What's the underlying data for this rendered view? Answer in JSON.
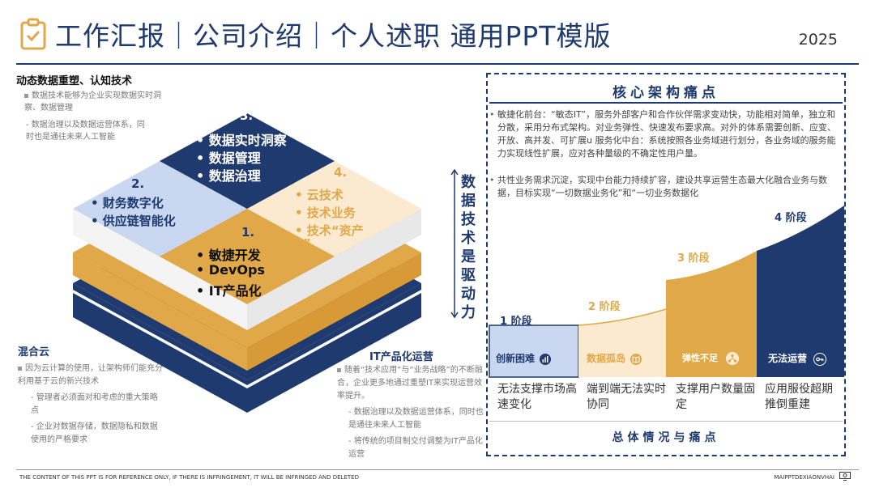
{
  "header": {
    "title": "工作汇报｜公司介绍｜个人述职 通用PPT模版",
    "year": "2025",
    "icon": "clipboard-check-icon"
  },
  "left_top": {
    "title": "动态数据重塑、认知技术",
    "bullet1": "数据技术能够为企业实现数据实时洞察、数据管理",
    "bullet2": "- 数据治理以及数据运营体系，同时也是通往未来人工智能"
  },
  "left_bottom": {
    "title": "混合云",
    "bullet1": "因为云计算的使用，让架构师们能充分利用基于云的新兴技术",
    "bullet2": "- 管理者必须面对和考虑的重大策略点",
    "bullet3": "- 企业对数据存储，数据隐私和数据使用的严格要求"
  },
  "right_bottom": {
    "title": "IT产品化运营",
    "bullet1": "随着“技术应用”与“业务战略”的不断融合，企业更多地通过重塑IT来实现运营效率提升。",
    "bullet2": "- 数据治理以及数据运营体系，同时也是通往未来人工智能",
    "bullet3": "- 将传统的项目制交付调整为IT产品化运营"
  },
  "diamond": {
    "q1": {
      "num": "1.",
      "items": [
        "•  敏捷开发",
        "•  DevOps",
        "•  IT产品化"
      ]
    },
    "q2": {
      "num": "2.",
      "items": [
        "•  财务数字化",
        "•  供应链智能化"
      ]
    },
    "q3": {
      "num": "3.",
      "items": [
        "•  数据实时洞察",
        "•  数据管理",
        "•  数据治理"
      ]
    },
    "q4": {
      "num": "4.",
      "items": [
        "•  云技术",
        "•  技术业务",
        "•  技术“资产",
        "”"
      ]
    }
  },
  "vertical_label": "数据技术是驱动力",
  "panel": {
    "title": "核心架构痛点",
    "bullet1": "敏捷化前台：“敏态IT”，服务外部客户和合作伙伴需求变动快，功能相对简单，独立和分散，采用分布式架构。对业务弹性、快速发布要求高。对外的体系需要创新、应变、开放、高并发、可扩展u 服务化中台：系统按照各业务域进行划分，各业务域的服务能力实现线性扩展，应对各种量级的不确定性用户量。",
    "bullet2": "共性业务需求沉淀，实现中台能力持续扩容，建设共享运营生态最大化融合业务与数据，目标实现“一切数据业务化”和“一切业务数据化",
    "stages": [
      {
        "label": "1 阶段",
        "box": "创新困难",
        "icon": "chart-bars-icon",
        "caption": "无法支撑市场高速变化"
      },
      {
        "label": "2 阶段",
        "box": "数据孤岛",
        "icon": "book-icon",
        "caption": "端到端无法实时协同"
      },
      {
        "label": "3 阶段",
        "box": "弹性不足",
        "icon": "network-icon",
        "caption": "支撑用户数量固定"
      },
      {
        "label": "4 阶段",
        "box": "无法运营",
        "icon": "key-icon",
        "caption": "应用服役超期推倒重建"
      }
    ],
    "footer": "总体情况与痛点"
  },
  "footer": {
    "left": "THE CONTENT OF THIS PPT IS FOR REFERENCE ONLY, IF THERE IS INFRINGEMENT, IT WILL BE INFRINGED AND DELETED",
    "right": "MAIPPTDEXIAONVHAI"
  },
  "colors": {
    "navy": "#1f3a6e",
    "gold": "#e0a848",
    "light_blue": "#c9d8f0",
    "cream": "#fbead0"
  }
}
